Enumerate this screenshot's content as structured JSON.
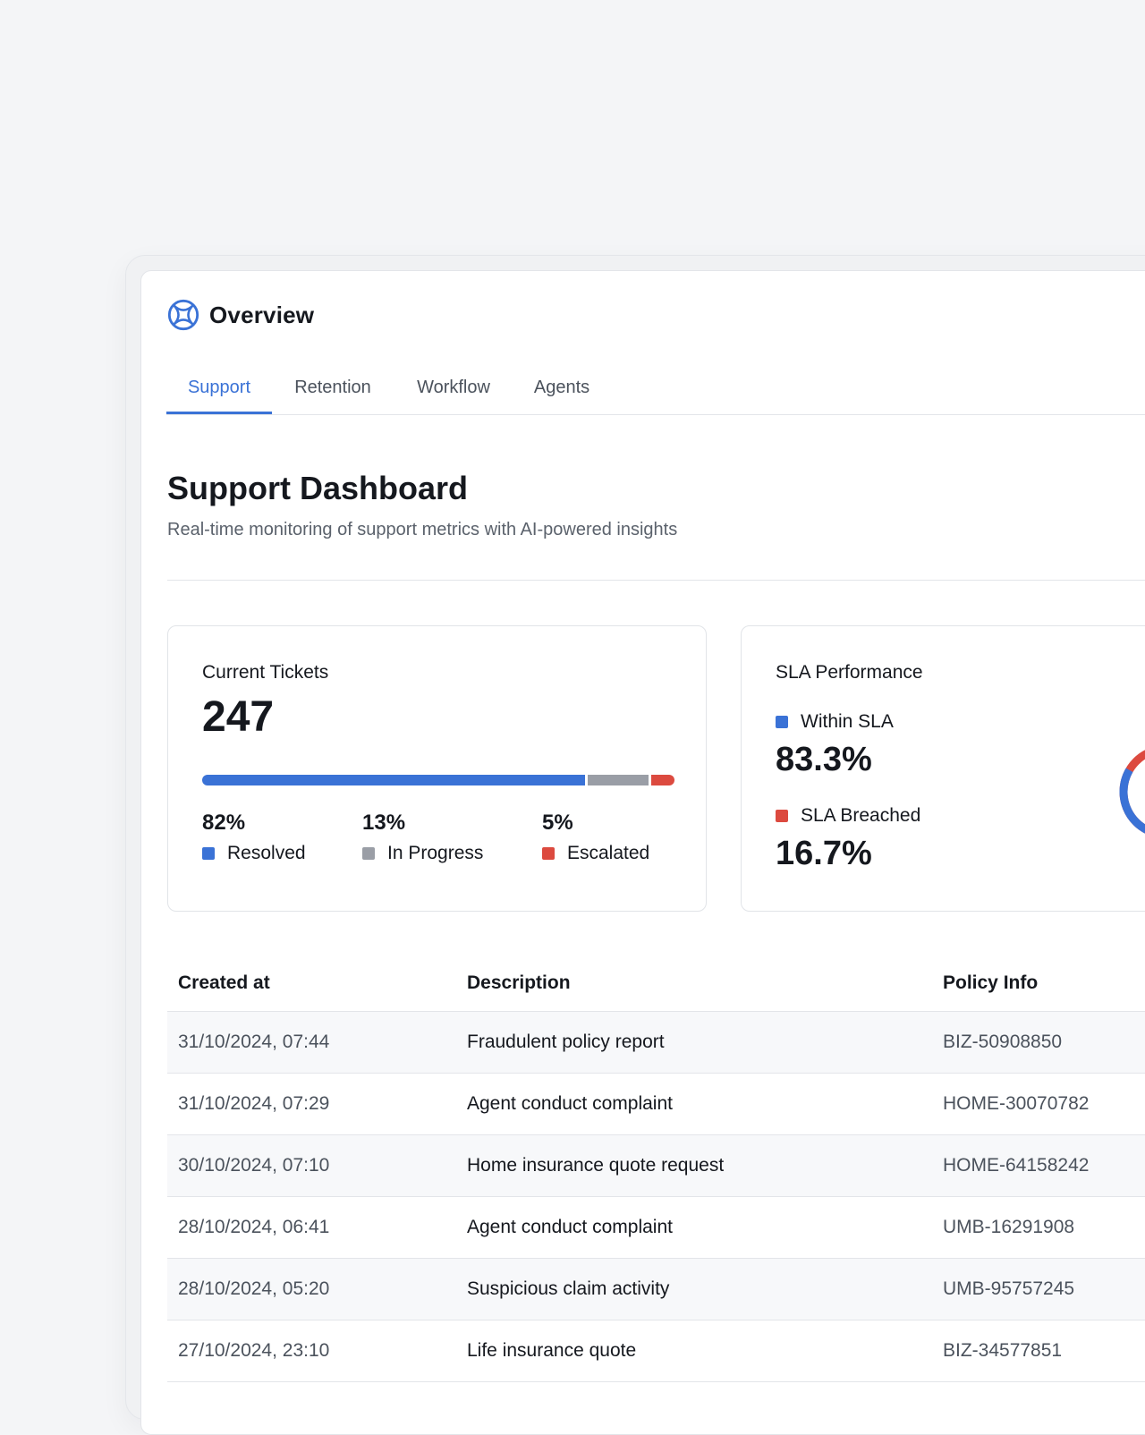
{
  "app": {
    "title": "Overview"
  },
  "tabs": [
    {
      "label": "Support",
      "active": true
    },
    {
      "label": "Retention",
      "active": false
    },
    {
      "label": "Workflow",
      "active": false
    },
    {
      "label": "Agents",
      "active": false
    }
  ],
  "page": {
    "title": "Support Dashboard",
    "subtitle": "Real-time monitoring of support metrics with AI-powered insights"
  },
  "tickets_card": {
    "label": "Current Tickets",
    "count": "247",
    "breakdown": [
      {
        "pct": "82%",
        "label": "Resolved",
        "value": 82,
        "color": "#3a72d6"
      },
      {
        "pct": "13%",
        "label": "In Progress",
        "value": 13,
        "color": "#9a9ea6"
      },
      {
        "pct": "5%",
        "label": "Escalated",
        "value": 5,
        "color": "#dc4a3f"
      }
    ]
  },
  "sla_card": {
    "label": "SLA Performance",
    "within": {
      "label": "Within SLA",
      "value": "83.3%",
      "color": "#3a72d6"
    },
    "breached": {
      "label": "SLA Breached",
      "value": "16.7%",
      "color": "#dc4a3f"
    }
  },
  "table": {
    "headers": [
      "Created at",
      "Description",
      "Policy Info"
    ],
    "rows": [
      {
        "created": "31/10/2024, 07:44",
        "description": "Fraudulent policy report",
        "policy": "BIZ-50908850"
      },
      {
        "created": "31/10/2024, 07:29",
        "description": "Agent conduct complaint",
        "policy": "HOME-30070782"
      },
      {
        "created": "30/10/2024, 07:10",
        "description": "Home insurance quote request",
        "policy": "HOME-64158242"
      },
      {
        "created": "28/10/2024, 06:41",
        "description": "Agent conduct complaint",
        "policy": "UMB-16291908"
      },
      {
        "created": "28/10/2024, 05:20",
        "description": "Suspicious claim activity",
        "policy": "UMB-95757245"
      },
      {
        "created": "27/10/2024, 23:10",
        "description": "Life insurance quote",
        "policy": "BIZ-34577851"
      }
    ]
  },
  "colors": {
    "accent": "#3a72d6",
    "gray": "#9a9ea6",
    "danger": "#dc4a3f"
  }
}
